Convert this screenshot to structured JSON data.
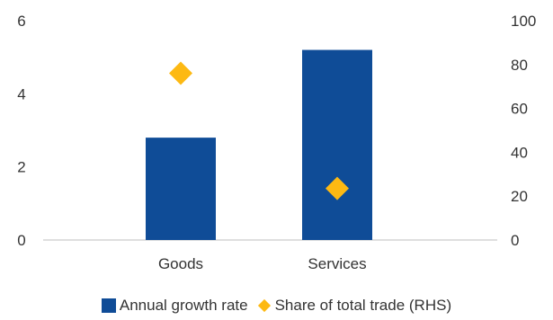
{
  "colors": {
    "bar": "#0F4C97",
    "marker": "#FDB913",
    "axis": "#BFBFBF",
    "text": "#333333"
  },
  "chart_data": {
    "type": "bar",
    "categories": [
      "Goods",
      "Services"
    ],
    "series": [
      {
        "name": "Annual growth rate",
        "type": "bar",
        "axis": "left",
        "values": [
          2.8,
          5.2
        ]
      },
      {
        "name": "Share of total trade (RHS)",
        "type": "scatter",
        "marker": "diamond",
        "axis": "right",
        "values": [
          76,
          23.5
        ]
      }
    ],
    "y_left": {
      "min": 0,
      "max": 6,
      "ticks": [
        "0",
        "2",
        "4",
        "6"
      ]
    },
    "y_right": {
      "min": 0,
      "max": 100,
      "ticks": [
        "0",
        "20",
        "40",
        "60",
        "80",
        "100"
      ]
    },
    "grid": false,
    "legend_position": "bottom"
  }
}
